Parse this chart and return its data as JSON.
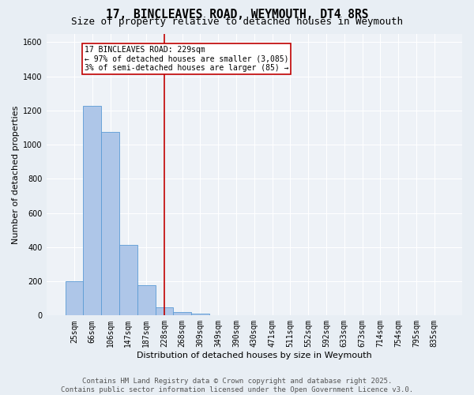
{
  "title": "17, BINCLEAVES ROAD, WEYMOUTH, DT4 8RS",
  "subtitle": "Size of property relative to detached houses in Weymouth",
  "xlabel": "Distribution of detached houses by size in Weymouth",
  "ylabel": "Number of detached properties",
  "categories": [
    "25sqm",
    "66sqm",
    "106sqm",
    "147sqm",
    "187sqm",
    "228sqm",
    "268sqm",
    "309sqm",
    "349sqm",
    "390sqm",
    "430sqm",
    "471sqm",
    "511sqm",
    "552sqm",
    "592sqm",
    "633sqm",
    "673sqm",
    "714sqm",
    "754sqm",
    "795sqm",
    "835sqm"
  ],
  "values": [
    200,
    1225,
    1075,
    415,
    175,
    50,
    20,
    10,
    0,
    0,
    0,
    0,
    0,
    0,
    0,
    0,
    0,
    0,
    0,
    0,
    0
  ],
  "bar_color": "#aec6e8",
  "bar_edge_color": "#5b9bd5",
  "vline_x": 5,
  "vline_color": "#c00000",
  "annotation_text": "17 BINCLEAVES ROAD: 229sqm\n← 97% of detached houses are smaller (3,085)\n3% of semi-detached houses are larger (85) →",
  "annotation_box_color": "#c00000",
  "annotation_text_color": "#000000",
  "ylim": [
    0,
    1650
  ],
  "yticks": [
    0,
    200,
    400,
    600,
    800,
    1000,
    1200,
    1400,
    1600
  ],
  "bg_color": "#e8eef4",
  "plot_bg_color": "#eef2f7",
  "grid_color": "#ffffff",
  "footer_line1": "Contains HM Land Registry data © Crown copyright and database right 2025.",
  "footer_line2": "Contains public sector information licensed under the Open Government Licence v3.0.",
  "title_fontsize": 10.5,
  "subtitle_fontsize": 9,
  "axis_label_fontsize": 8,
  "tick_fontsize": 7,
  "annotation_fontsize": 7,
  "footer_fontsize": 6.5
}
